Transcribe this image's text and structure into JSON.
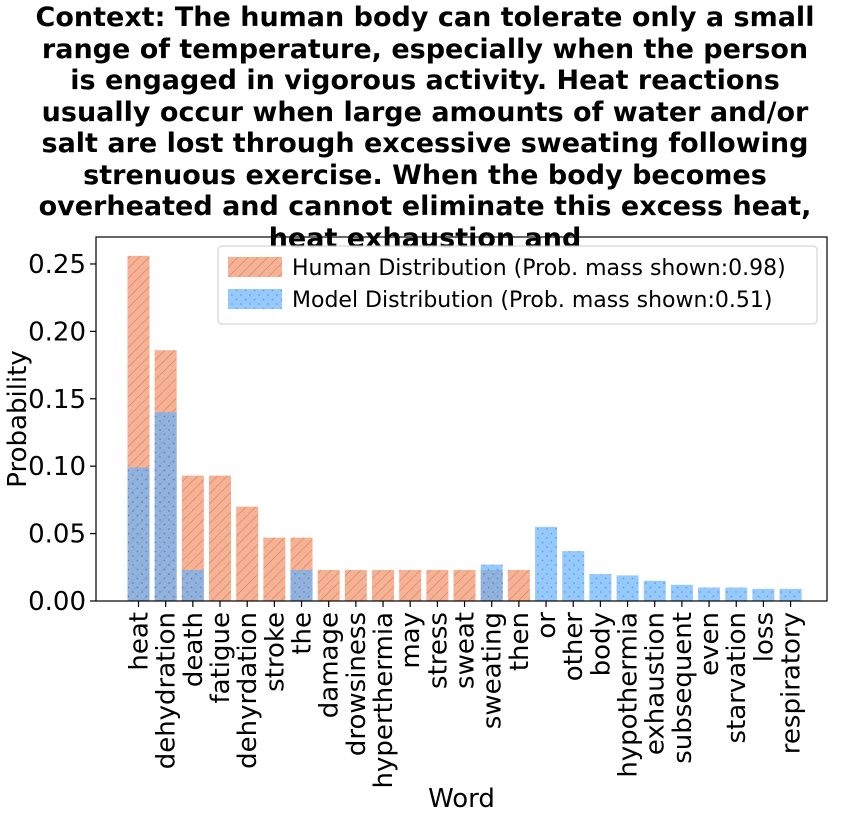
{
  "chart_data": {
    "type": "bar",
    "title_lines": [
      "Context: The human body can tolerate only a small",
      "range of temperature, especially when the person",
      "is engaged in vigorous activity. Heat reactions",
      "usually occur when large amounts of water and/or",
      "salt are lost through excessive sweating following",
      "strenuous exercise. When the body becomes",
      "overheated and cannot eliminate this excess heat,",
      "heat exhaustion and"
    ],
    "xlabel": "Word",
    "ylabel": "Probability",
    "ylim": [
      0,
      0.27
    ],
    "yticks": [
      0.0,
      0.05,
      0.1,
      0.15,
      0.2,
      0.25
    ],
    "ytick_labels": [
      "0.00",
      "0.05",
      "0.10",
      "0.15",
      "0.20",
      "0.25"
    ],
    "categories": [
      "heat",
      "dehydration",
      "death",
      "fatigue",
      "dehyrdation",
      "stroke",
      "the",
      "damage",
      "drowsiness",
      "hyperthermia",
      "may",
      "stress",
      "sweat",
      "sweating",
      "then",
      "or",
      "other",
      "body",
      "hypothermia",
      "exhaustion",
      "subsequent",
      "even",
      "starvation",
      "loss",
      "respiratory"
    ],
    "series": [
      {
        "name": "Human Distribution (Prob. mass shown:0.98)",
        "color": "#f4845f",
        "hatch": "diagonal",
        "values": [
          0.256,
          0.186,
          0.093,
          0.093,
          0.07,
          0.047,
          0.047,
          0.023,
          0.023,
          0.023,
          0.023,
          0.023,
          0.023,
          0.023,
          0.023,
          0,
          0,
          0,
          0,
          0,
          0,
          0,
          0,
          0,
          0
        ]
      },
      {
        "name": "Model Distribution (Prob. mass shown:0.51)",
        "color": "#4da6ff",
        "hatch": "dots",
        "values": [
          0.099,
          0.14,
          0.023,
          0,
          0,
          0,
          0.023,
          0,
          0,
          0,
          0,
          0,
          0,
          0.027,
          0,
          0.055,
          0.037,
          0.02,
          0.019,
          0.015,
          0.012,
          0.01,
          0.01,
          0.009,
          0.009
        ]
      }
    ],
    "legend_position": "top-right",
    "grid": false
  }
}
